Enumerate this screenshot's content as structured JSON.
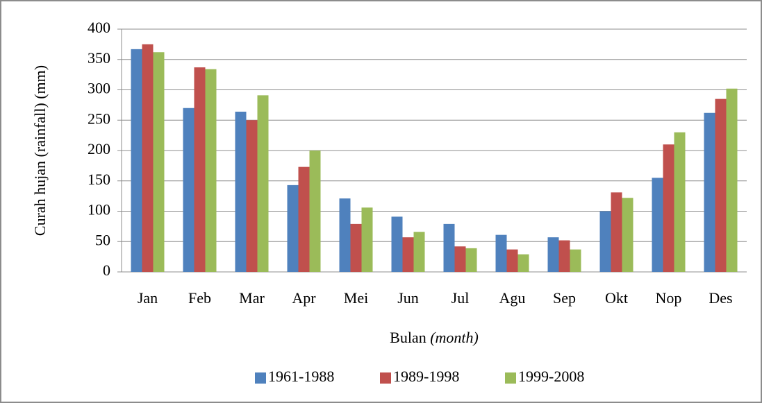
{
  "chart_data": {
    "type": "bar",
    "ylabel": "Curah hujan (rainfall) (mm)",
    "xlabel": "Bulan",
    "xlabel_italic": "(month)",
    "categories": [
      "Jan",
      "Feb",
      "Mar",
      "Apr",
      "Mei",
      "Jun",
      "Jul",
      "Agu",
      "Sep",
      "Okt",
      "Nop",
      "Des"
    ],
    "series": [
      {
        "name": "1961-1988",
        "color": "#4f81bd",
        "values": [
          367,
          270,
          264,
          143,
          121,
          91,
          79,
          61,
          57,
          100,
          155,
          262
        ]
      },
      {
        "name": "1989-1998",
        "color": "#c0504d",
        "values": [
          375,
          337,
          250,
          173,
          79,
          57,
          42,
          37,
          52,
          131,
          210,
          285
        ]
      },
      {
        "name": "1999-2008",
        "color": "#9bbb59",
        "values": [
          362,
          334,
          291,
          200,
          106,
          66,
          39,
          29,
          37,
          122,
          230,
          302
        ]
      }
    ],
    "ylim": [
      0,
      400
    ],
    "yticks": [
      0,
      50,
      100,
      150,
      200,
      250,
      300,
      350,
      400
    ],
    "grid": true,
    "legend": "bottom"
  }
}
